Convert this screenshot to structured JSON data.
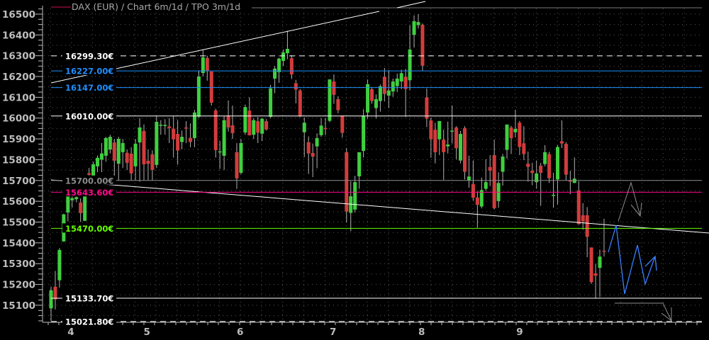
{
  "chart_data": {
    "type": "candlestick",
    "title": "DAX (EUR) /  Chart 6m/1d / TPO 3m/1d",
    "legend_color": "#d0104c",
    "ylim": [
      15018,
      16568
    ],
    "y_ticks": [
      15100,
      15200,
      15300,
      15400,
      15500,
      15600,
      15700,
      15800,
      15900,
      16000,
      16100,
      16200,
      16300,
      16400,
      16500
    ],
    "x_ticks": [
      {
        "label": "4",
        "candle_index": 4.7
      },
      {
        "label": "5",
        "candle_index": 22.7
      },
      {
        "label": "6",
        "candle_index": 44.8
      },
      {
        "label": "7",
        "candle_index": 66.8
      },
      {
        "label": "8",
        "candle_index": 87.8
      },
      {
        "label": "9",
        "candle_index": 111
      }
    ],
    "grid": true,
    "colors": {
      "up": "#3fcf3f",
      "down": "#d23c3c",
      "wick": "#b0b0b0"
    },
    "levels": [
      {
        "price": 16299.3,
        "label": "16299.30€",
        "color": "#ffffff",
        "style": "dashed"
      },
      {
        "price": 16227.0,
        "label": "16227.00€",
        "color": "#1e8fff",
        "style": "solid"
      },
      {
        "price": 16147.0,
        "label": "16147.00€",
        "color": "#1e8fff",
        "style": "solid"
      },
      {
        "price": 16010.0,
        "label": "16010.00€",
        "color": "#ffffff",
        "style": "solid"
      },
      {
        "price": 15700.0,
        "label": "15700.00€",
        "color": "#8c8c8c",
        "style": "solid"
      },
      {
        "price": 15643.6,
        "label": "15643.60€",
        "color": "#ff0a8c",
        "style": "solid"
      },
      {
        "price": 15470.0,
        "label": "15470.00€",
        "color": "#66ff00",
        "style": "solid"
      },
      {
        "price": 15133.7,
        "label": "15133.70€",
        "color": "#ffffff",
        "style": "solid"
      },
      {
        "price": 15021.8,
        "label": "15021.80€",
        "color": "#ffffff",
        "style": "dashed"
      }
    ],
    "ohlc": [
      [
        15085,
        15190,
        15025,
        15172
      ],
      [
        15189,
        15265,
        15080,
        15128
      ],
      [
        15220,
        15375,
        15185,
        15366
      ],
      [
        15407,
        15540,
        15405,
        15537
      ],
      [
        15546,
        15660,
        15503,
        15630
      ],
      [
        15605,
        15640,
        15570,
        15615
      ],
      [
        15610,
        15660,
        15595,
        15620
      ],
      [
        15594,
        15614,
        15500,
        15543
      ],
      [
        15506,
        15660,
        15505,
        15650
      ],
      [
        15735,
        15760,
        15700,
        15727
      ],
      [
        15723,
        15790,
        15700,
        15778
      ],
      [
        15768,
        15820,
        15740,
        15809
      ],
      [
        15800,
        15880,
        15740,
        15830
      ],
      [
        15819,
        15910,
        15790,
        15904
      ],
      [
        15849,
        15920,
        15830,
        15910
      ],
      [
        15883,
        15900,
        15700,
        15795
      ],
      [
        15781,
        15910,
        15700,
        15900
      ],
      [
        15836,
        15900,
        15760,
        15880
      ],
      [
        15833,
        15850,
        15750,
        15785
      ],
      [
        15829,
        15860,
        15700,
        15734
      ],
      [
        15768,
        15900,
        15700,
        15877
      ],
      [
        15883,
        16000,
        15694,
        15955
      ],
      [
        15938,
        15970,
        15700,
        15778
      ],
      [
        15795,
        15850,
        15700,
        15780
      ],
      [
        15826,
        15845,
        15700,
        15751
      ],
      [
        15775,
        16010,
        15760,
        15982
      ],
      [
        15963,
        15990,
        15920,
        15968
      ],
      [
        15963,
        15995,
        15920,
        15967
      ],
      [
        15960,
        16000,
        15880,
        15952
      ],
      [
        15949,
        16010,
        15810,
        15898
      ],
      [
        15924,
        15990,
        15776,
        15844
      ],
      [
        15885,
        15940,
        15850,
        15910
      ],
      [
        15955,
        15985,
        15880,
        15953
      ],
      [
        15905,
        15975,
        15860,
        15885
      ],
      [
        15904,
        16040,
        15860,
        16027
      ],
      [
        16007,
        16230,
        16000,
        16200
      ],
      [
        16217,
        16330,
        16200,
        16292
      ],
      [
        16289,
        16300,
        16180,
        16228
      ],
      [
        16224,
        16224,
        16060,
        16074
      ],
      [
        16037,
        16045,
        15810,
        15846
      ],
      [
        15835,
        15890,
        15755,
        15840
      ],
      [
        15819,
        16010,
        15750,
        15990
      ],
      [
        16013,
        16085,
        15935,
        15955
      ],
      [
        15965,
        16060,
        15900,
        15928
      ],
      [
        15836,
        15880,
        15660,
        15710
      ],
      [
        15737,
        15900,
        15730,
        15880
      ],
      [
        15931,
        16065,
        15920,
        16053
      ],
      [
        16036,
        16100,
        15917,
        15917
      ],
      [
        15920,
        16000,
        15900,
        15990
      ],
      [
        15985,
        16005,
        15880,
        15930
      ],
      [
        15925,
        16000,
        15890,
        15997
      ],
      [
        15985,
        15995,
        15940,
        15945
      ],
      [
        16006,
        16160,
        16000,
        16143
      ],
      [
        16190,
        16250,
        16120,
        16238
      ],
      [
        16221,
        16290,
        16170,
        16286
      ],
      [
        16275,
        16330,
        16250,
        16316
      ],
      [
        16312,
        16420,
        16283,
        16333
      ],
      [
        16288,
        16302,
        16188,
        16210
      ],
      [
        16168,
        16184,
        16071,
        16137
      ],
      [
        16133,
        16140,
        16005,
        16008
      ],
      [
        15932,
        16003,
        15813,
        15978
      ],
      [
        15884,
        15912,
        15731,
        15830
      ],
      [
        15832,
        15878,
        15716,
        15815
      ],
      [
        15864,
        15927,
        15759,
        15904
      ],
      [
        15918,
        16000,
        15910,
        15964
      ],
      [
        15952,
        16000,
        15918,
        15948
      ],
      [
        15987,
        16186,
        15980,
        16186
      ],
      [
        16176,
        16210,
        16069,
        16112
      ],
      [
        16091,
        16105,
        16023,
        16038
      ],
      [
        16012,
        16012,
        15906,
        15929
      ],
      [
        15836,
        15856,
        15498,
        15550
      ],
      [
        15544,
        15696,
        15456,
        15624
      ],
      [
        15560,
        15722,
        15546,
        15692
      ],
      [
        15720,
        15836,
        15660,
        15836
      ],
      [
        15842,
        16043,
        15811,
        16012
      ],
      [
        16027,
        16186,
        15997,
        16163
      ],
      [
        16139,
        16148,
        16069,
        16082
      ],
      [
        16048,
        16114,
        15997,
        16091
      ],
      [
        16082,
        16162,
        16031,
        16153
      ],
      [
        16199,
        16241,
        16080,
        16116
      ],
      [
        16108,
        16231,
        16048,
        16133
      ],
      [
        16128,
        16190,
        16103,
        16176
      ],
      [
        16154,
        16214,
        16125,
        16190
      ],
      [
        16176,
        16233,
        16139,
        16216
      ],
      [
        16199,
        16237,
        16006,
        16140
      ],
      [
        16182,
        16446,
        16134,
        16330
      ],
      [
        16400,
        16494,
        16339,
        16466
      ],
      [
        16447,
        16500,
        16430,
        16462
      ],
      [
        16449,
        16455,
        16228,
        16252
      ],
      [
        16100,
        16142,
        15957,
        15997
      ],
      [
        15989,
        16002,
        15811,
        15898
      ],
      [
        15944,
        15978,
        15782,
        15836
      ],
      [
        15898,
        15986,
        15822,
        15986
      ],
      [
        15896,
        15944,
        15703,
        15836
      ],
      [
        15864,
        15983,
        15830,
        15873
      ],
      [
        15936,
        16061,
        15878,
        15940
      ],
      [
        15955,
        15961,
        15802,
        15855
      ],
      [
        15796,
        15938,
        15782,
        15924
      ],
      [
        15952,
        15961,
        15705,
        15742
      ],
      [
        15700,
        15819,
        15665,
        15719
      ],
      [
        15683,
        15796,
        15603,
        15617
      ],
      [
        15618,
        15648,
        15473,
        15583
      ],
      [
        15575,
        15714,
        15566,
        15654
      ],
      [
        15660,
        15802,
        15651,
        15692
      ],
      [
        15765,
        15822,
        15673,
        15747
      ],
      [
        15822,
        15896,
        15561,
        15567
      ],
      [
        15601,
        15739,
        15569,
        15688
      ],
      [
        15742,
        15828,
        15675,
        15815
      ],
      [
        15847,
        15969,
        15805,
        15969
      ],
      [
        15955,
        15963,
        15827,
        15904
      ],
      [
        15932,
        16040,
        15907,
        15948
      ],
      [
        15978,
        15986,
        15822,
        15861
      ],
      [
        15879,
        15961,
        15798,
        15827
      ],
      [
        15781,
        15839,
        15694,
        15765
      ],
      [
        15747,
        15785,
        15677,
        15736
      ],
      [
        15692,
        15796,
        15660,
        15734
      ],
      [
        15771,
        15784,
        15578,
        15737
      ],
      [
        15779,
        15870,
        15768,
        15836
      ],
      [
        15827,
        15838,
        15688,
        15711
      ],
      [
        15631,
        15737,
        15569,
        15631
      ],
      [
        15705,
        15870,
        15584,
        15861
      ],
      [
        15889,
        15989,
        15856,
        15878
      ],
      [
        15876,
        15884,
        15700,
        15728
      ],
      [
        15700,
        15747,
        15634,
        15694
      ],
      [
        15688,
        15811,
        15688,
        15709
      ],
      [
        15652,
        15697,
        15488,
        15490
      ],
      [
        15533,
        15591,
        15463,
        15503
      ],
      [
        15533,
        15572,
        15331,
        15429
      ],
      [
        15378,
        15378,
        15203,
        15211
      ],
      [
        15253,
        15300,
        15135,
        15242
      ],
      [
        15280,
        15368,
        15140,
        15334
      ],
      [
        15362,
        15516,
        15334,
        15358
      ]
    ]
  }
}
